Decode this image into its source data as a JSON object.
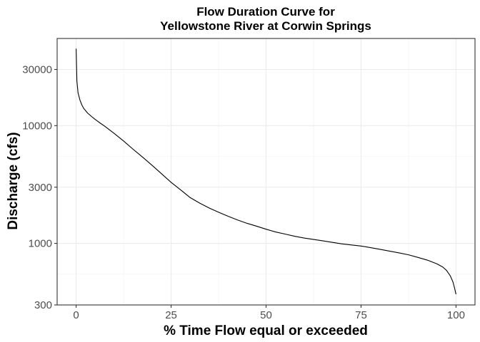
{
  "chart_data": {
    "type": "line",
    "title": [
      "Flow Duration Curve for",
      "Yellowstone River at Corwin Springs"
    ],
    "xlabel": "% Time Flow equal or exceeded",
    "ylabel": "Discharge (cfs)",
    "xlim": [
      -5,
      105
    ],
    "ylim": [
      300,
      55000
    ],
    "y_scale": "log",
    "grid": true,
    "x_ticks": [
      0,
      25,
      50,
      75,
      100
    ],
    "x_tick_labels": [
      "0",
      "25",
      "50",
      "75",
      "100"
    ],
    "y_ticks": [
      300,
      1000,
      3000,
      10000,
      30000
    ],
    "y_tick_labels": [
      "300",
      "1000",
      "3000",
      "10000",
      "30000"
    ],
    "y_minor": [
      550,
      5500,
      55000
    ],
    "line_color": "#000000",
    "series": [
      {
        "x": [
          0,
          0.05,
          0.2,
          0.5,
          1,
          1.5,
          2,
          3,
          4,
          5,
          6,
          7.5,
          10,
          12.5,
          15,
          17.5,
          20,
          22.5,
          25,
          27.5,
          30,
          32.5,
          35,
          37.5,
          40,
          42.5,
          45,
          47.5,
          50,
          52.5,
          55,
          57.5,
          60,
          62.5,
          65,
          67.5,
          70,
          72.5,
          75,
          77.5,
          80,
          82.5,
          85,
          87.5,
          90,
          92.5,
          95,
          96.5,
          97.5,
          98.5,
          99.2,
          99.6,
          100
        ],
        "y": [
          45000,
          38000,
          24000,
          19000,
          16500,
          15000,
          14000,
          12800,
          12000,
          11300,
          10700,
          9900,
          8600,
          7400,
          6300,
          5400,
          4600,
          3900,
          3300,
          2850,
          2450,
          2200,
          2000,
          1840,
          1700,
          1580,
          1480,
          1400,
          1320,
          1250,
          1200,
          1150,
          1110,
          1080,
          1050,
          1020,
          990,
          970,
          950,
          920,
          890,
          860,
          830,
          800,
          760,
          720,
          670,
          630,
          590,
          530,
          470,
          420,
          370
        ]
      }
    ]
  }
}
